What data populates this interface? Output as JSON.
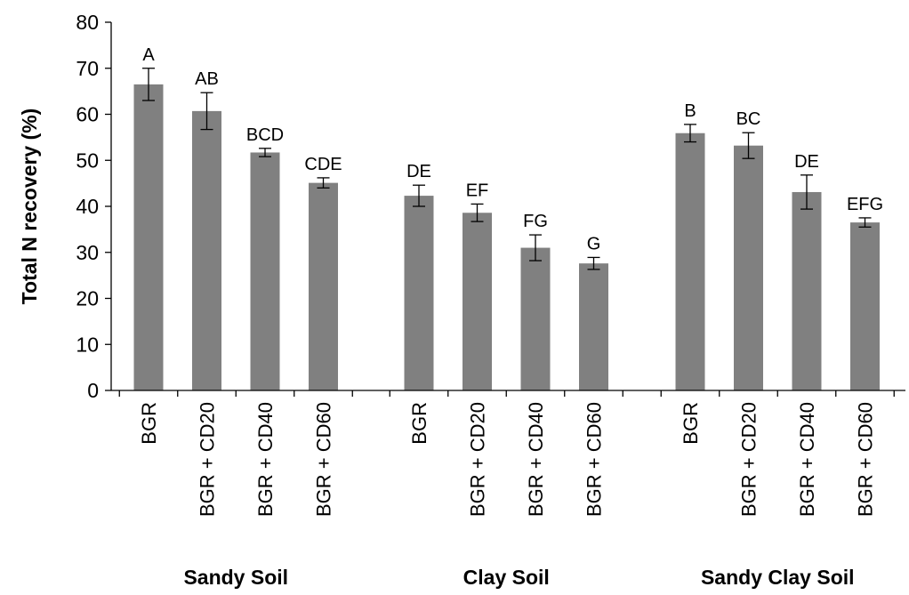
{
  "chart_data": {
    "type": "bar",
    "title": "",
    "xlabel": "",
    "ylabel": "Total N recovery (%)",
    "ylim": [
      0,
      80
    ],
    "yticks": [
      0,
      10,
      20,
      30,
      40,
      50,
      60,
      70,
      80
    ],
    "grid": false,
    "legend": "none",
    "colors": {
      "bar": "#808080",
      "axis": "#000000",
      "error_bar": "#000000"
    },
    "groups": [
      {
        "name": "Sandy Soil",
        "bars": [
          {
            "category": "BGR",
            "value": 66.5,
            "error": 3.5,
            "significance": "A"
          },
          {
            "category": "BGR + CD20",
            "value": 60.7,
            "error": 4.0,
            "significance": "AB"
          },
          {
            "category": "BGR + CD40",
            "value": 51.7,
            "error": 0.9,
            "significance": "BCD"
          },
          {
            "category": "BGR + CD60",
            "value": 45.1,
            "error": 1.1,
            "significance": "CDE"
          }
        ]
      },
      {
        "name": "Clay Soil",
        "bars": [
          {
            "category": "BGR",
            "value": 42.3,
            "error": 2.3,
            "significance": "DE"
          },
          {
            "category": "BGR + CD20",
            "value": 38.6,
            "error": 1.9,
            "significance": "EF"
          },
          {
            "category": "BGR + CD40",
            "value": 31.0,
            "error": 2.8,
            "significance": "FG"
          },
          {
            "category": "BGR + CD60",
            "value": 27.6,
            "error": 1.3,
            "significance": "G"
          }
        ]
      },
      {
        "name": "Sandy Clay Soil",
        "bars": [
          {
            "category": "BGR",
            "value": 55.9,
            "error": 1.9,
            "significance": "B"
          },
          {
            "category": "BGR + CD20",
            "value": 53.2,
            "error": 2.8,
            "significance": "BC"
          },
          {
            "category": "BGR + CD40",
            "value": 43.1,
            "error": 3.7,
            "significance": "DE"
          },
          {
            "category": "BGR + CD60",
            "value": 36.5,
            "error": 1.0,
            "significance": "EFG"
          }
        ]
      }
    ]
  }
}
